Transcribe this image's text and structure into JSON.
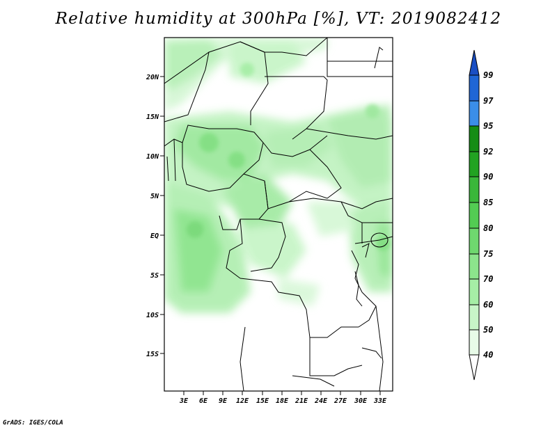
{
  "title": "Relative humidity at 300hPa [%], VT: 2019082412",
  "credit": "GrADS: IGES/COLA",
  "map": {
    "lon_range": [
      0,
      34.5
    ],
    "lat_range": [
      -20,
      24.5
    ],
    "lat_ticks": [
      "20N",
      "15N",
      "10N",
      "5N",
      "EQ",
      "5S",
      "10S",
      "15S"
    ],
    "lon_ticks": [
      "3E",
      "6E",
      "9E",
      "12E",
      "15E",
      "18E",
      "21E",
      "24E",
      "27E",
      "30E",
      "33E"
    ]
  },
  "colorbar": {
    "levels": [
      "40",
      "50",
      "60",
      "70",
      "75",
      "80",
      "85",
      "90",
      "92",
      "95",
      "97",
      "99"
    ],
    "colors": [
      "#ffffff",
      "#e6fbe6",
      "#c8f5c8",
      "#a6eea6",
      "#8ce48c",
      "#6fd86f",
      "#53cc53",
      "#3ab73a",
      "#22a322",
      "#158d15",
      "#3b8ee8",
      "#1f66d6",
      "#1a4fc4"
    ]
  }
}
